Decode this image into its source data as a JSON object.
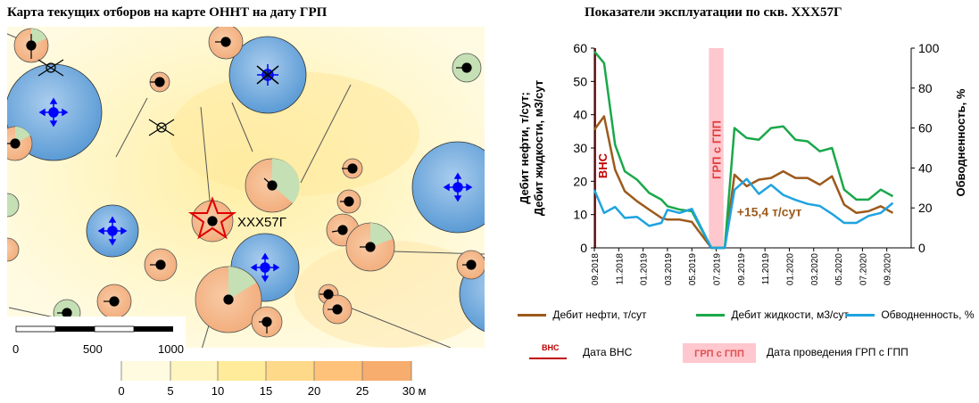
{
  "map": {
    "title": "Карта текущих отборов на карте ОННТ на дату ГРП",
    "well_label": "XXX57Г",
    "scale_labels": [
      "0",
      "500",
      "1000"
    ],
    "colorbar": {
      "ticks": [
        "0",
        "5",
        "10",
        "15",
        "20",
        "25",
        "30"
      ],
      "unit": "м",
      "colors": [
        "#fffbe0",
        "#fff5c0",
        "#ffeb99",
        "#ffd98a",
        "#ffc27a",
        "#f7ad6e"
      ]
    },
    "colors": {
      "injector": "#5b9bd5",
      "oil": "#f4b183",
      "water": "#c5e0b4",
      "injector_arrow": "#0000ff"
    }
  },
  "chart_data": {
    "type": "line",
    "title": "Показатели эксплуатации по скв. XXX57Г",
    "ylabel": "Дебит нефти, т/сут; Дебит жидкости, м3/сут",
    "ylabel2": "Обводненность, %",
    "ylim": [
      0,
      60
    ],
    "ylim2": [
      0,
      100
    ],
    "yticks": [
      0,
      10,
      20,
      30,
      40,
      50,
      60
    ],
    "yticks2": [
      0,
      20,
      40,
      60,
      80,
      100
    ],
    "xlim": [
      0,
      26
    ],
    "xticks": [
      {
        "x": 0,
        "label": "09.2018"
      },
      {
        "x": 2,
        "label": "11.2018"
      },
      {
        "x": 4,
        "label": "01.2019"
      },
      {
        "x": 6,
        "label": "03.2019"
      },
      {
        "x": 8,
        "label": "05.2019"
      },
      {
        "x": 10,
        "label": "07.2019"
      },
      {
        "x": 12,
        "label": "09.2019"
      },
      {
        "x": 14,
        "label": "11.2019"
      },
      {
        "x": 16,
        "label": "01.2020"
      },
      {
        "x": 18,
        "label": "03.2020"
      },
      {
        "x": 20,
        "label": "05.2020"
      },
      {
        "x": 22,
        "label": "07.2020"
      },
      {
        "x": 24,
        "label": "09.2020"
      }
    ],
    "series": [
      {
        "name": "Дебит нефти, т/сут",
        "color": "#9c5a1c",
        "axis": "left",
        "points": [
          [
            0,
            35.5
          ],
          [
            0.8,
            39.5
          ],
          [
            1.7,
            23.5
          ],
          [
            2.5,
            17
          ],
          [
            3.5,
            14
          ],
          [
            4.5,
            11.5
          ],
          [
            5.5,
            9
          ],
          [
            6,
            8.5
          ],
          [
            7,
            8.5
          ],
          [
            8,
            7.8
          ],
          [
            9.6,
            0
          ],
          [
            10.7,
            0
          ],
          [
            11.5,
            22
          ],
          [
            12.5,
            18.5
          ],
          [
            13.5,
            20.5
          ],
          [
            14.5,
            21
          ],
          [
            15.5,
            23
          ],
          [
            16.5,
            21
          ],
          [
            17.5,
            21
          ],
          [
            18.5,
            19
          ],
          [
            19.5,
            21.5
          ],
          [
            20.5,
            13
          ],
          [
            21.5,
            10.5
          ],
          [
            22.5,
            11
          ],
          [
            23.5,
            12.5
          ],
          [
            24.5,
            10.5
          ]
        ]
      },
      {
        "name": "Дебит жидкости, м3/сут",
        "color": "#1aa84a",
        "axis": "left",
        "points": [
          [
            0,
            59
          ],
          [
            0.8,
            55.5
          ],
          [
            1.7,
            31
          ],
          [
            2.5,
            23
          ],
          [
            3.5,
            20.5
          ],
          [
            4.5,
            16.5
          ],
          [
            5.5,
            14.5
          ],
          [
            6,
            12.5
          ],
          [
            7,
            11.5
          ],
          [
            8,
            11
          ],
          [
            9.6,
            0
          ],
          [
            10.7,
            0
          ],
          [
            11.5,
            36
          ],
          [
            12.5,
            33
          ],
          [
            13.5,
            32.5
          ],
          [
            14.5,
            36
          ],
          [
            15.5,
            36.5
          ],
          [
            16.5,
            32.5
          ],
          [
            17.5,
            32
          ],
          [
            18.5,
            29
          ],
          [
            19.5,
            30
          ],
          [
            20.5,
            17.5
          ],
          [
            21.5,
            14.5
          ],
          [
            22.5,
            14.5
          ],
          [
            23.5,
            17.5
          ],
          [
            24.5,
            15.5
          ]
        ]
      },
      {
        "name": "Обводненность, %",
        "color": "#1fa3e0",
        "axis": "right",
        "points": [
          [
            0,
            29
          ],
          [
            0.8,
            17.5
          ],
          [
            1.7,
            20.5
          ],
          [
            2.5,
            15
          ],
          [
            3.5,
            15.5
          ],
          [
            4.5,
            11
          ],
          [
            5.5,
            12.5
          ],
          [
            6,
            19
          ],
          [
            7,
            17.5
          ],
          [
            8,
            19.5
          ],
          [
            9.6,
            0
          ],
          [
            10.7,
            0
          ],
          [
            11.5,
            29
          ],
          [
            12.5,
            34.5
          ],
          [
            13.5,
            27
          ],
          [
            14.5,
            31.5
          ],
          [
            15.5,
            26.5
          ],
          [
            16.5,
            24
          ],
          [
            17.5,
            22
          ],
          [
            18.5,
            21
          ],
          [
            19.5,
            17
          ],
          [
            20.5,
            12.5
          ],
          [
            21.5,
            12.5
          ],
          [
            22.5,
            16
          ],
          [
            23.5,
            17.5
          ],
          [
            24.5,
            22.5
          ]
        ]
      }
    ],
    "vns": {
      "x": 0,
      "label": "ВНС"
    },
    "frac": {
      "x_start": 9.4,
      "x_end": 10.6,
      "label": "ГРП с ГПП"
    },
    "annotation": {
      "text": "+15,4 т/сут",
      "x": 11.7,
      "y": 9.5,
      "color": "#9c5a1c"
    },
    "legend_items": [
      {
        "label": "Дебит нефти, т/сут",
        "color": "#9c5a1c"
      },
      {
        "label": "Дебит жидкости, м3/сут",
        "color": "#1aa84a"
      },
      {
        "label": "Обводненность, %",
        "color": "#1fa3e0"
      }
    ],
    "legend2": {
      "vns_label": "ВНС",
      "vns_text": "Дата ВНС",
      "frac_label": "ГРП с ГПП",
      "frac_text": "Дата проведения ГРП с ГПП",
      "vns_color": "#c00000",
      "frac_color": "#ffc7ce"
    }
  }
}
